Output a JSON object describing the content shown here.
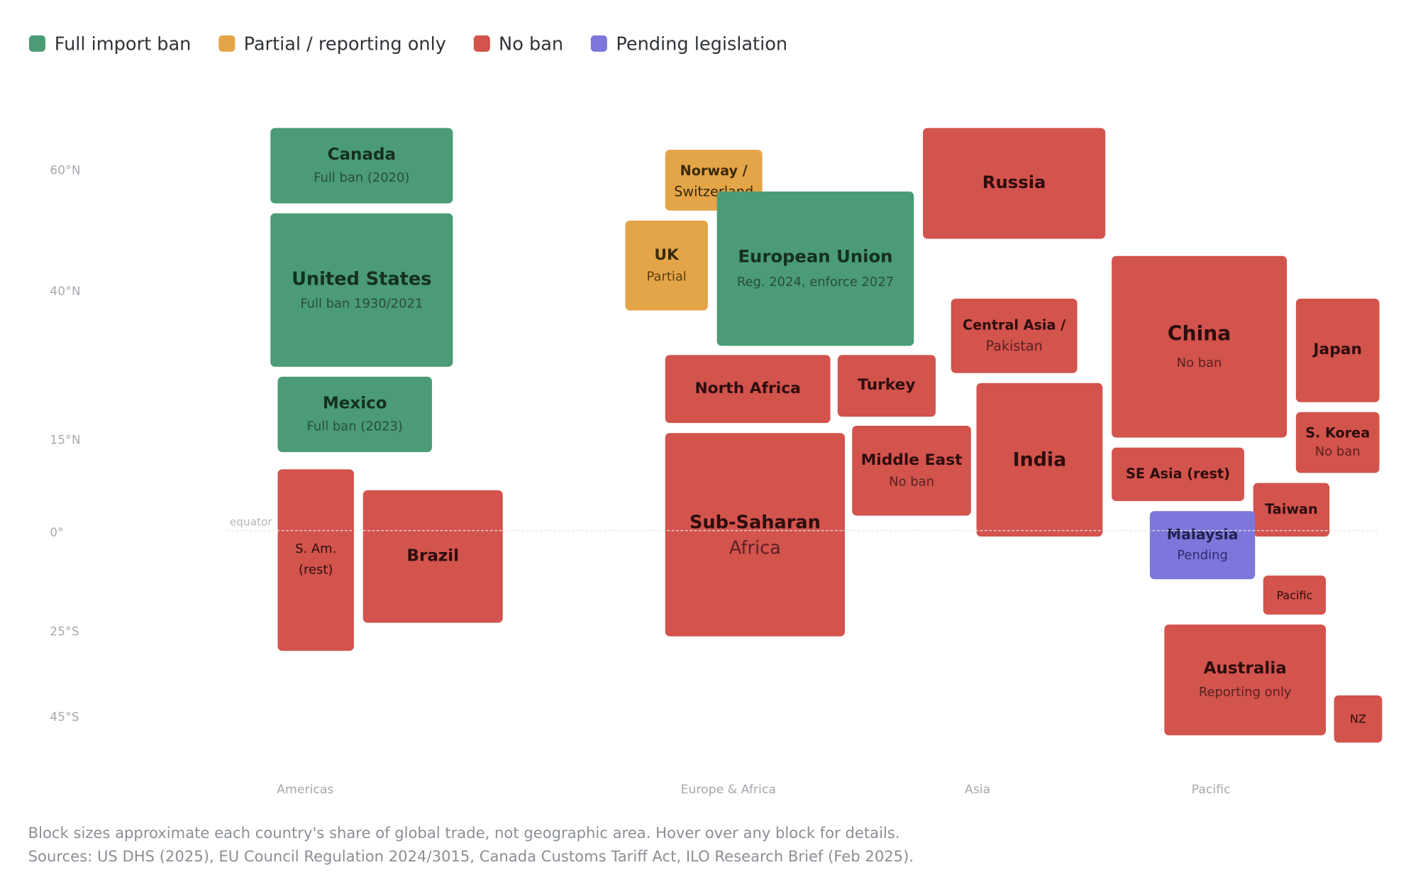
{
  "legend": [
    {
      "label": "Full import ban",
      "color": "#4a9b76"
    },
    {
      "label": "Partial / reporting only",
      "color": "#e4a548"
    },
    {
      "label": "No ban",
      "color": "#d3534d"
    },
    {
      "label": "Pending legislation",
      "color": "#7d77db"
    }
  ],
  "latitude_labels": [
    "60°N",
    "40°N",
    "15°N",
    "0°",
    "25°S",
    "45°S"
  ],
  "equator_label": "equator",
  "regions": [
    "Americas",
    "Europe & Africa",
    "Asia",
    "Pacific"
  ],
  "blocks": {
    "canada": {
      "name": "Canada",
      "status": "Full ban (2020)"
    },
    "united_states": {
      "name": "United States",
      "status": "Full ban 1930/2021"
    },
    "mexico": {
      "name": "Mexico",
      "status": "Full ban (2023)"
    },
    "s_america": {
      "name": "S. Am.",
      "status": "(rest)"
    },
    "brazil": {
      "name": "Brazil"
    },
    "norway_switzerland": {
      "name": "Norway /",
      "status": "Switzerland"
    },
    "uk": {
      "name": "UK",
      "status": "Partial"
    },
    "european_union": {
      "name": "European Union",
      "status": "Reg. 2024, enforce 2027"
    },
    "north_africa": {
      "name": "North Africa"
    },
    "turkey": {
      "name": "Turkey"
    },
    "sub_saharan": {
      "name": "Sub-Saharan",
      "status": "Africa"
    },
    "middle_east": {
      "name": "Middle East",
      "status": "No ban"
    },
    "russia": {
      "name": "Russia"
    },
    "central_asia": {
      "name": "Central Asia /",
      "status": "Pakistan"
    },
    "india": {
      "name": "India"
    },
    "china": {
      "name": "China",
      "status": "No ban"
    },
    "japan": {
      "name": "Japan"
    },
    "s_korea": {
      "name": "S. Korea",
      "status": "No ban"
    },
    "se_asia": {
      "name": "SE Asia (rest)"
    },
    "taiwan": {
      "name": "Taiwan"
    },
    "malaysia": {
      "name": "Malaysia",
      "status": "Pending"
    },
    "pacific": {
      "name": "Pacific"
    },
    "australia": {
      "name": "Australia",
      "status": "Reporting only"
    },
    "nz": {
      "name": "NZ"
    }
  },
  "footer": {
    "note": "Block sizes approximate each country's share of global trade, not geographic area. Hover over any block for details.",
    "sources": "Sources: US DHS (2025), EU Council Regulation 2024/3015, Canada Customs Tariff Act, ILO Research Brief (Feb 2025)."
  }
}
